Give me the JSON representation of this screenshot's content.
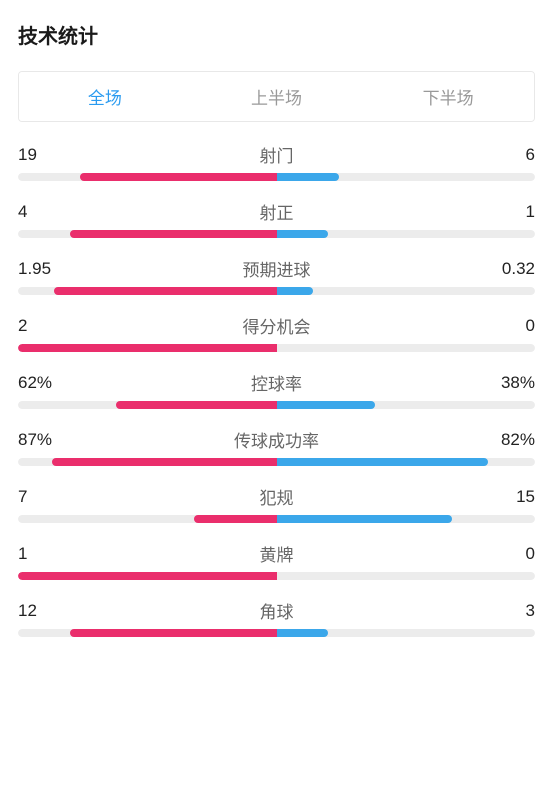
{
  "title": "技术统计",
  "tabs": [
    {
      "label": "全场",
      "active": true
    },
    {
      "label": "上半场",
      "active": false
    },
    {
      "label": "下半场",
      "active": false
    }
  ],
  "colors": {
    "left": "#ea2e6c",
    "right": "#3ba7ea",
    "track": "#ececec",
    "active_tab": "#2a9bf0",
    "inactive_tab": "#999",
    "text": "#222",
    "stat_name": "#666"
  },
  "stats": [
    {
      "name": "射门",
      "left_value": "19",
      "right_value": "6",
      "left_pct": 76,
      "right_pct": 24
    },
    {
      "name": "射正",
      "left_value": "4",
      "right_value": "1",
      "left_pct": 80,
      "right_pct": 20
    },
    {
      "name": "预期进球",
      "left_value": "1.95",
      "right_value": "0.32",
      "left_pct": 86,
      "right_pct": 14
    },
    {
      "name": "得分机会",
      "left_value": "2",
      "right_value": "0",
      "left_pct": 100,
      "right_pct": 0
    },
    {
      "name": "控球率",
      "left_value": "62%",
      "right_value": "38%",
      "left_pct": 62,
      "right_pct": 38
    },
    {
      "name": "传球成功率",
      "left_value": "87%",
      "right_value": "82%",
      "left_pct": 87,
      "right_pct": 82
    },
    {
      "name": "犯规",
      "left_value": "7",
      "right_value": "15",
      "left_pct": 32,
      "right_pct": 68
    },
    {
      "name": "黄牌",
      "left_value": "1",
      "right_value": "0",
      "left_pct": 100,
      "right_pct": 0
    },
    {
      "name": "角球",
      "left_value": "12",
      "right_value": "3",
      "left_pct": 80,
      "right_pct": 20
    }
  ]
}
